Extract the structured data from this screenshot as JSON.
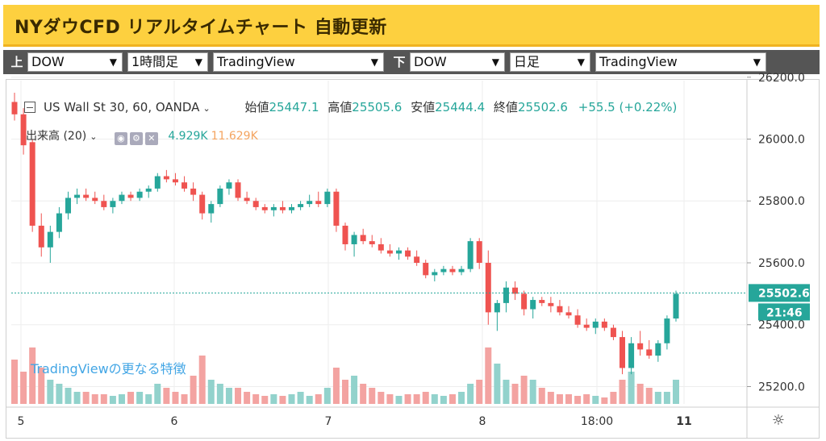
{
  "header": {
    "title": "NYダウCFD リアルタイムチャート 自動更新"
  },
  "selectors": {
    "upper_tag": "上",
    "lower_tag": "下",
    "upper": {
      "symbol": "DOW",
      "interval": "1時間足",
      "provider": "TradingView"
    },
    "lower": {
      "symbol": "DOW",
      "interval": "日足",
      "provider": "TradingView"
    }
  },
  "legend": {
    "symbol": "US Wall St 30, 60, OANDA",
    "open_label": "始値",
    "open": "25447.1",
    "high_label": "高値",
    "high": "25505.6",
    "low_label": "安値",
    "low": "25444.4",
    "close_label": "終値",
    "close": "25502.6",
    "change": "+55.5 (+0.22%)",
    "volume_label": "出来高 (20)",
    "volume_ma": "4.929K",
    "volume": "11.629K"
  },
  "tradingview_link": "TradingViewの更なる特徴",
  "colors": {
    "up": "#26a69a",
    "down": "#ef5350",
    "vol_up": "#92d2cc",
    "vol_down": "#f3a3a1"
  },
  "chart_data": {
    "type": "candlestick",
    "yticks": [
      "26200.0",
      "26000.0",
      "25800.0",
      "25600.0",
      "25400.0",
      "25200.0"
    ],
    "ylim": [
      25170,
      26215
    ],
    "xticks": [
      "5",
      "6",
      "7",
      "8",
      "18:00",
      "11"
    ],
    "last_price": "25502.6",
    "countdown": "21:46",
    "candles_ohlc": [
      [
        26120,
        26150,
        26060,
        26080
      ],
      [
        26080,
        26100,
        25950,
        25980
      ],
      [
        25990,
        26000,
        25700,
        25720
      ],
      [
        25720,
        25760,
        25620,
        25650
      ],
      [
        25650,
        25720,
        25600,
        25700
      ],
      [
        25700,
        25780,
        25680,
        25760
      ],
      [
        25760,
        25830,
        25740,
        25810
      ],
      [
        25810,
        25840,
        25790,
        25820
      ],
      [
        25820,
        25840,
        25800,
        25810
      ],
      [
        25810,
        25830,
        25790,
        25800
      ],
      [
        25800,
        25820,
        25770,
        25780
      ],
      [
        25780,
        25810,
        25760,
        25800
      ],
      [
        25800,
        25830,
        25790,
        25820
      ],
      [
        25820,
        25830,
        25800,
        25810
      ],
      [
        25810,
        25840,
        25800,
        25830
      ],
      [
        25830,
        25850,
        25810,
        25840
      ],
      [
        25840,
        25890,
        25830,
        25880
      ],
      [
        25880,
        25900,
        25860,
        25870
      ],
      [
        25870,
        25890,
        25850,
        25860
      ],
      [
        25860,
        25880,
        25830,
        25840
      ],
      [
        25840,
        25860,
        25800,
        25820
      ],
      [
        25820,
        25830,
        25740,
        25760
      ],
      [
        25760,
        25800,
        25730,
        25790
      ],
      [
        25790,
        25850,
        25780,
        25840
      ],
      [
        25840,
        25870,
        25820,
        25860
      ],
      [
        25860,
        25870,
        25800,
        25810
      ],
      [
        25810,
        25830,
        25790,
        25800
      ],
      [
        25800,
        25810,
        25770,
        25780
      ],
      [
        25780,
        25790,
        25760,
        25770
      ],
      [
        25770,
        25790,
        25750,
        25780
      ],
      [
        25780,
        25800,
        25760,
        25770
      ],
      [
        25770,
        25790,
        25760,
        25780
      ],
      [
        25780,
        25800,
        25770,
        25790
      ],
      [
        25790,
        25820,
        25780,
        25800
      ],
      [
        25800,
        25830,
        25780,
        25790
      ],
      [
        25790,
        25840,
        25780,
        25830
      ],
      [
        25830,
        25840,
        25700,
        25720
      ],
      [
        25720,
        25730,
        25640,
        25660
      ],
      [
        25660,
        25700,
        25620,
        25690
      ],
      [
        25690,
        25710,
        25660,
        25670
      ],
      [
        25670,
        25690,
        25650,
        25660
      ],
      [
        25660,
        25680,
        25630,
        25640
      ],
      [
        25640,
        25660,
        25620,
        25630
      ],
      [
        25630,
        25650,
        25610,
        25640
      ],
      [
        25640,
        25650,
        25610,
        25620
      ],
      [
        25620,
        25640,
        25590,
        25600
      ],
      [
        25600,
        25610,
        25550,
        25560
      ],
      [
        25560,
        25580,
        25540,
        25570
      ],
      [
        25570,
        25590,
        25560,
        25580
      ],
      [
        25580,
        25590,
        25560,
        25570
      ],
      [
        25570,
        25590,
        25560,
        25580
      ],
      [
        25580,
        25680,
        25570,
        25670
      ],
      [
        25670,
        25680,
        25580,
        25600
      ],
      [
        25600,
        25640,
        25400,
        25440
      ],
      [
        25440,
        25480,
        25380,
        25470
      ],
      [
        25470,
        25540,
        25440,
        25520
      ],
      [
        25520,
        25540,
        25480,
        25500
      ],
      [
        25500,
        25510,
        25430,
        25450
      ],
      [
        25450,
        25490,
        25420,
        25480
      ],
      [
        25480,
        25490,
        25460,
        25470
      ],
      [
        25470,
        25490,
        25440,
        25460
      ],
      [
        25460,
        25480,
        25430,
        25440
      ],
      [
        25440,
        25460,
        25420,
        25430
      ],
      [
        25430,
        25450,
        25390,
        25400
      ],
      [
        25400,
        25420,
        25380,
        25390
      ],
      [
        25390,
        25420,
        25370,
        25410
      ],
      [
        25410,
        25420,
        25380,
        25390
      ],
      [
        25390,
        25400,
        25350,
        25360
      ],
      [
        25360,
        25380,
        25240,
        25260
      ],
      [
        25260,
        25360,
        25240,
        25340
      ],
      [
        25340,
        25380,
        25300,
        25320
      ],
      [
        25320,
        25350,
        25290,
        25300
      ],
      [
        25300,
        25350,
        25280,
        25340
      ],
      [
        25340,
        25430,
        25320,
        25420
      ],
      [
        25420,
        25510,
        25410,
        25500
      ]
    ],
    "volume": [
      0.55,
      0.4,
      0.7,
      0.45,
      0.3,
      0.25,
      0.2,
      0.15,
      0.15,
      0.12,
      0.12,
      0.1,
      0.12,
      0.15,
      0.15,
      0.12,
      0.25,
      0.2,
      0.15,
      0.12,
      0.35,
      0.6,
      0.3,
      0.25,
      0.2,
      0.2,
      0.15,
      0.12,
      0.1,
      0.12,
      0.1,
      0.12,
      0.15,
      0.1,
      0.12,
      0.2,
      0.45,
      0.3,
      0.35,
      0.25,
      0.2,
      0.15,
      0.12,
      0.1,
      0.12,
      0.12,
      0.15,
      0.12,
      0.1,
      0.12,
      0.15,
      0.25,
      0.3,
      0.7,
      0.5,
      0.3,
      0.25,
      0.35,
      0.3,
      0.2,
      0.15,
      0.12,
      0.12,
      0.1,
      0.12,
      0.1,
      0.08,
      0.15,
      0.3,
      0.4,
      0.25,
      0.2,
      0.15,
      0.15,
      0.3
    ]
  }
}
